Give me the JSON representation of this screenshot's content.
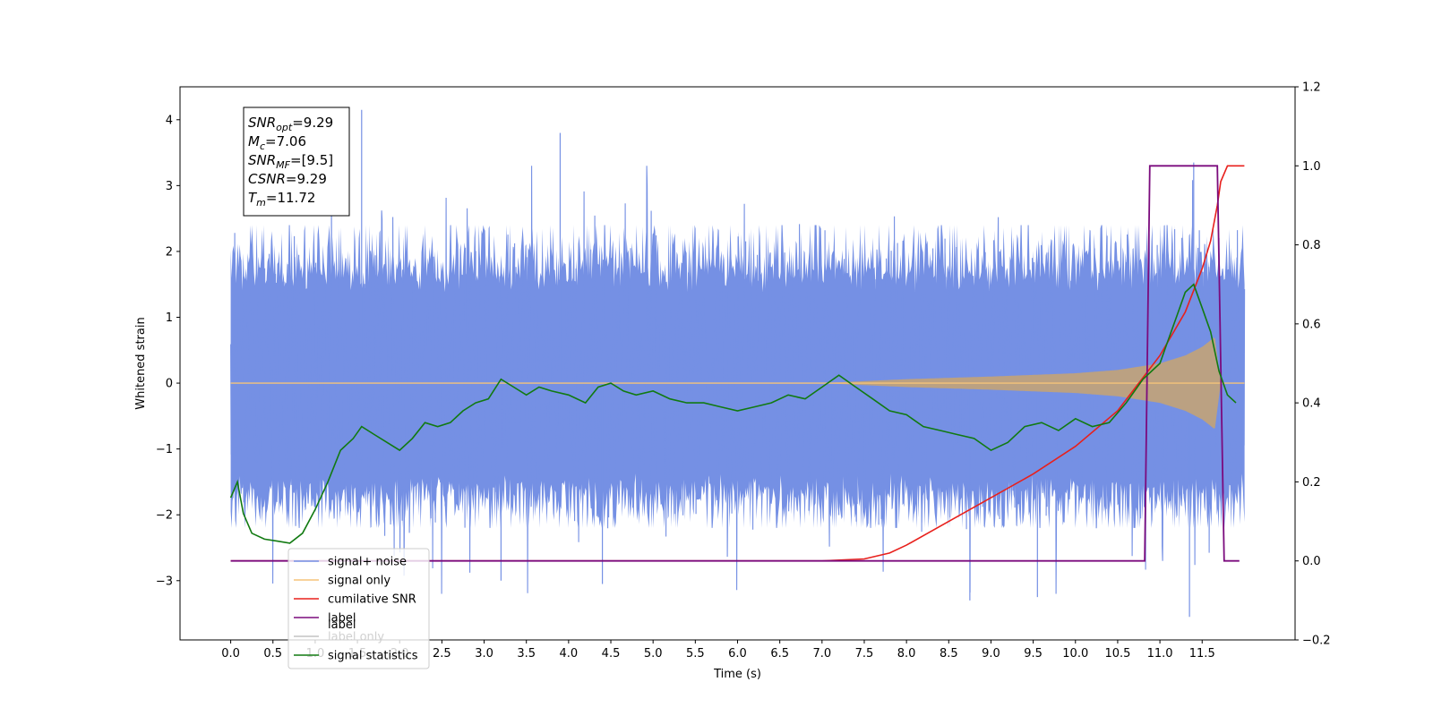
{
  "chart_data": {
    "type": "line",
    "title": "",
    "xlabel": "Time (s)",
    "ylabel": "Whitened strain",
    "y2label": "",
    "xlim": [
      -0.6,
      12.6
    ],
    "ylim": [
      -3.9,
      4.5
    ],
    "y2lim": [
      -0.2,
      1.2
    ],
    "xticks": [
      "0.0",
      "0.5",
      "1.0",
      "1.5",
      "2.0",
      "2.5",
      "3.0",
      "3.5",
      "4.0",
      "4.5",
      "5.0",
      "5.5",
      "6.0",
      "6.5",
      "7.0",
      "7.5",
      "8.0",
      "8.5",
      "9.0",
      "9.5",
      "10.0",
      "10.5",
      "11.0",
      "11.5"
    ],
    "yticks": [
      "−3",
      "−2",
      "−1",
      "0",
      "1",
      "2",
      "3",
      "4"
    ],
    "y2ticks": [
      "−0.2",
      "0.0",
      "0.2",
      "0.4",
      "0.6",
      "0.8",
      "1.0",
      "1.2"
    ],
    "grid": false,
    "legend_position": "bottom-left",
    "annotation": {
      "lines": [
        {
          "name": "SNR",
          "sub": "opt",
          "value": "=9.29"
        },
        {
          "name": "M",
          "sub": "c",
          "value": "=7.06"
        },
        {
          "name": "SNR",
          "sub": "MF",
          "value": "=[9.5]"
        },
        {
          "name": "CSNR",
          "sub": "",
          "value": "=9.29"
        },
        {
          "name": "T",
          "sub": "m",
          "value": "=11.72"
        }
      ]
    },
    "series": [
      {
        "name": "signal+ noise",
        "axis": "left",
        "color": "#7590e4",
        "kind": "noise",
        "x_range": [
          0.0,
          12.0
        ],
        "typical_amplitude_range": [
          -2.2,
          2.4
        ],
        "peak_max": 4.15,
        "peak_min": -3.55
      },
      {
        "name": "signal only",
        "axis": "left",
        "color": "#f5c47a",
        "kind": "chirp",
        "x_range": [
          0.0,
          12.0
        ],
        "envelope_t": [
          0.0,
          7.0,
          7.5,
          8.0,
          9.0,
          10.0,
          10.5,
          11.0,
          11.3,
          11.5,
          11.65,
          11.72,
          12.0
        ],
        "envelope_amp": [
          0.0,
          0.0,
          0.03,
          0.06,
          0.1,
          0.15,
          0.2,
          0.3,
          0.42,
          0.55,
          0.7,
          0.0,
          0.0
        ]
      },
      {
        "name": "cumilative SNR",
        "axis": "right",
        "color": "#e8201c",
        "x": [
          0.0,
          7.0,
          7.5,
          7.8,
          8.0,
          8.5,
          9.0,
          9.5,
          10.0,
          10.5,
          11.0,
          11.3,
          11.5,
          11.6,
          11.68,
          11.72,
          11.8,
          12.0
        ],
        "y": [
          0.0,
          0.0,
          0.005,
          0.02,
          0.04,
          0.1,
          0.16,
          0.22,
          0.29,
          0.38,
          0.52,
          0.63,
          0.74,
          0.81,
          0.9,
          0.96,
          1.0,
          1.0
        ]
      },
      {
        "name": "label",
        "axis": "right",
        "color": "#7b0b7d",
        "x": [
          0.0,
          10.82,
          10.88,
          11.68,
          11.76,
          11.94
        ],
        "y": [
          0.0,
          0.0,
          1.0,
          1.0,
          0.0,
          0.0
        ]
      },
      {
        "name": "label only",
        "axis": "right",
        "color": "#888888",
        "hidden": true
      },
      {
        "name": "signal statistics",
        "axis": "right",
        "color": "#117a11",
        "x": [
          0.0,
          0.08,
          0.15,
          0.25,
          0.4,
          0.55,
          0.7,
          0.85,
          1.0,
          1.15,
          1.3,
          1.45,
          1.55,
          1.7,
          1.85,
          2.0,
          2.15,
          2.3,
          2.45,
          2.6,
          2.75,
          2.9,
          3.05,
          3.2,
          3.35,
          3.5,
          3.65,
          3.8,
          4.0,
          4.2,
          4.35,
          4.5,
          4.65,
          4.8,
          5.0,
          5.2,
          5.4,
          5.6,
          5.8,
          6.0,
          6.2,
          6.4,
          6.6,
          6.8,
          7.0,
          7.2,
          7.4,
          7.6,
          7.8,
          8.0,
          8.2,
          8.4,
          8.6,
          8.8,
          9.0,
          9.2,
          9.4,
          9.6,
          9.8,
          10.0,
          10.2,
          10.4,
          10.6,
          10.8,
          11.0,
          11.1,
          11.2,
          11.3,
          11.4,
          11.5,
          11.6,
          11.7,
          11.8,
          11.9
        ],
        "y": [
          0.16,
          0.2,
          0.12,
          0.07,
          0.055,
          0.05,
          0.045,
          0.07,
          0.13,
          0.2,
          0.28,
          0.31,
          0.34,
          0.32,
          0.3,
          0.28,
          0.31,
          0.35,
          0.34,
          0.35,
          0.38,
          0.4,
          0.41,
          0.46,
          0.44,
          0.42,
          0.44,
          0.43,
          0.42,
          0.4,
          0.44,
          0.45,
          0.43,
          0.42,
          0.43,
          0.41,
          0.4,
          0.4,
          0.39,
          0.38,
          0.39,
          0.4,
          0.42,
          0.41,
          0.44,
          0.47,
          0.44,
          0.41,
          0.38,
          0.37,
          0.34,
          0.33,
          0.32,
          0.31,
          0.28,
          0.3,
          0.34,
          0.35,
          0.33,
          0.36,
          0.34,
          0.35,
          0.4,
          0.46,
          0.5,
          0.56,
          0.62,
          0.68,
          0.7,
          0.64,
          0.58,
          0.48,
          0.42,
          0.4
        ]
      }
    ],
    "legend": [
      {
        "label": "signal+ noise",
        "color": "#7590e4"
      },
      {
        "label": "signal only",
        "color": "#f5c47a"
      },
      {
        "label": "cumilative SNR",
        "color": "#e8201c"
      },
      {
        "label": "label",
        "color": "#7b0b7d"
      },
      {
        "label": "label only",
        "color": "#888888",
        "faded": true
      },
      {
        "label": "signal statistics",
        "color": "#117a11"
      }
    ]
  }
}
